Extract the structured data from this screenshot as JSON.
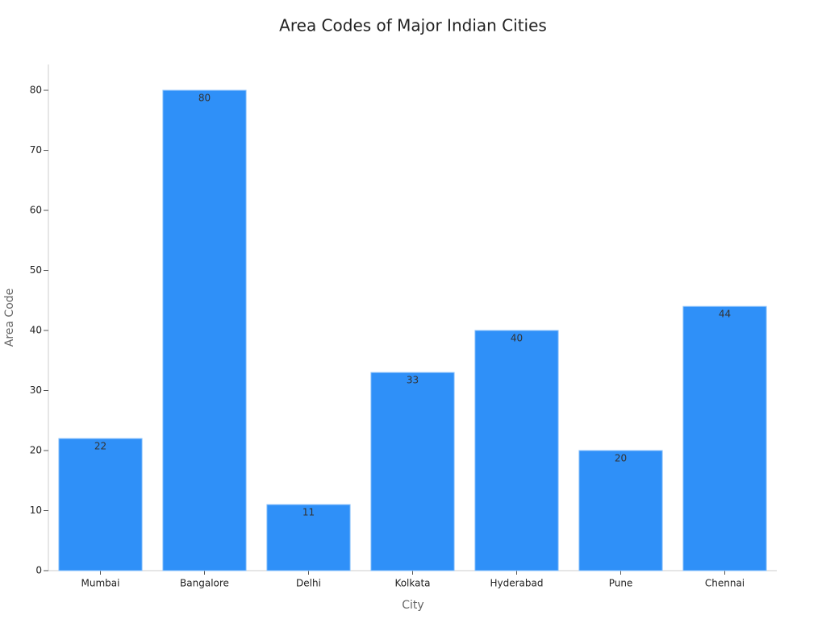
{
  "chart_data": {
    "type": "bar",
    "title": "Area Codes of Major Indian Cities",
    "x_label": "City",
    "y_label": "Area Code",
    "categories": [
      "Mumbai",
      "Bangalore",
      "Delhi",
      "Kolkata",
      "Hyderabad",
      "Pune",
      "Chennai"
    ],
    "values": [
      22,
      80,
      11,
      33,
      40,
      20,
      44
    ],
    "color": "#2f90f8",
    "ylim": [
      0,
      84.3
    ],
    "yticks": [
      0,
      10,
      20,
      30,
      40,
      50,
      60,
      70,
      80
    ],
    "grid": false,
    "data_labels": true
  }
}
